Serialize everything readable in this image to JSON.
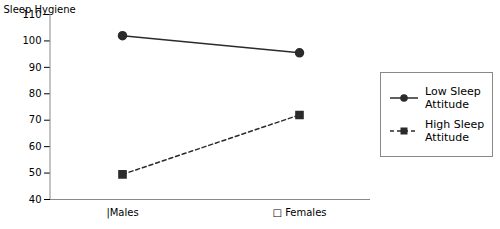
{
  "chart_data": {
    "type": "line",
    "categories": [
      "|Males",
      "□ Females"
    ],
    "series": [
      {
        "name": "Low Sleep\nAttitude",
        "color": "#2b2b2b",
        "marker": "circle",
        "line_style": "solid",
        "values": [
          102,
          95.5
        ]
      },
      {
        "name": "High Sleep\nAttitude",
        "color": "#2b2b2b",
        "marker": "square",
        "line_style": "dashed",
        "values": [
          49.5,
          72
        ]
      }
    ],
    "ylabel": "Sleep Hygiene",
    "ylim": [
      40,
      110
    ],
    "yticks": [
      40,
      50,
      60,
      70,
      80,
      90,
      100,
      110
    ],
    "grid": false,
    "legend": "right"
  }
}
